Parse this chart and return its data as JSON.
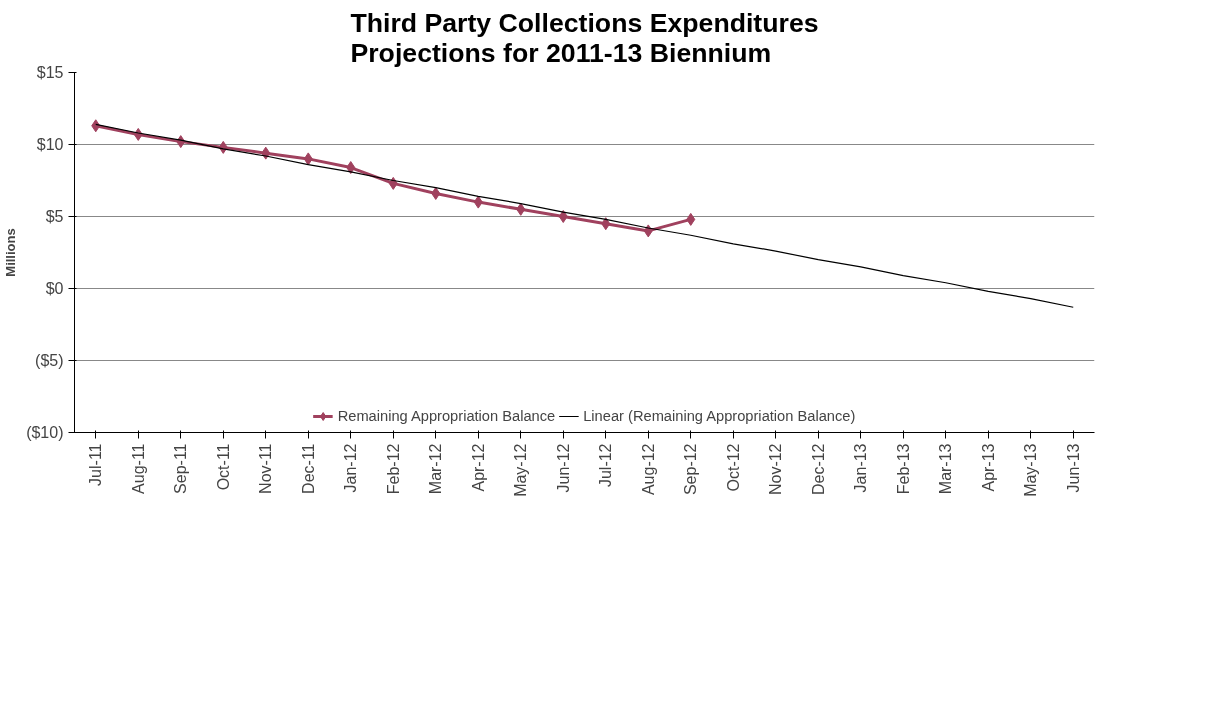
{
  "chart_data": {
    "type": "line",
    "title": "Third Party Collections Expenditures\nProjections for 2011-13 Biennium",
    "ylabel": "Millions",
    "categories": [
      "Jul-11",
      "Aug-11",
      "Sep-11",
      "Oct-11",
      "Nov-11",
      "Dec-11",
      "Jan-12",
      "Feb-12",
      "Mar-12",
      "Apr-12",
      "May-12",
      "Jun-12",
      "Jul-12",
      "Aug-12",
      "Sep-12",
      "Oct-12",
      "Nov-12",
      "Dec-12",
      "Jan-13",
      "Feb-13",
      "Mar-13",
      "Apr-13",
      "May-13",
      "Jun-13"
    ],
    "series": [
      {
        "name": "Remaining Appropriation Balance",
        "color": "#a0415e",
        "marker": "diamond",
        "values": [
          11.3,
          10.7,
          10.2,
          9.8,
          9.4,
          9.0,
          8.4,
          7.3,
          6.6,
          6.0,
          5.5,
          5.0,
          4.5,
          4.0,
          4.8,
          null,
          null,
          null,
          null,
          null,
          null,
          null,
          null,
          null
        ]
      },
      {
        "name": "Linear (Remaining Appropriation Balance)",
        "color": "#000000",
        "marker": "none",
        "values": [
          11.4,
          10.8,
          10.3,
          9.7,
          9.2,
          8.6,
          8.1,
          7.5,
          7.0,
          6.4,
          5.9,
          5.3,
          4.8,
          4.2,
          3.7,
          3.1,
          2.6,
          2.0,
          1.5,
          0.9,
          0.4,
          -0.2,
          -0.7,
          -1.3
        ]
      }
    ],
    "ylim": [
      -10,
      15
    ],
    "yticks": [
      {
        "value": 15,
        "label": "$15"
      },
      {
        "value": 10,
        "label": "$10"
      },
      {
        "value": 5,
        "label": "$5"
      },
      {
        "value": 0,
        "label": "$0"
      },
      {
        "value": -5,
        "label": "($5)"
      },
      {
        "value": -10,
        "label": "($10)"
      }
    ],
    "grid": "y",
    "legend": "bottom"
  }
}
